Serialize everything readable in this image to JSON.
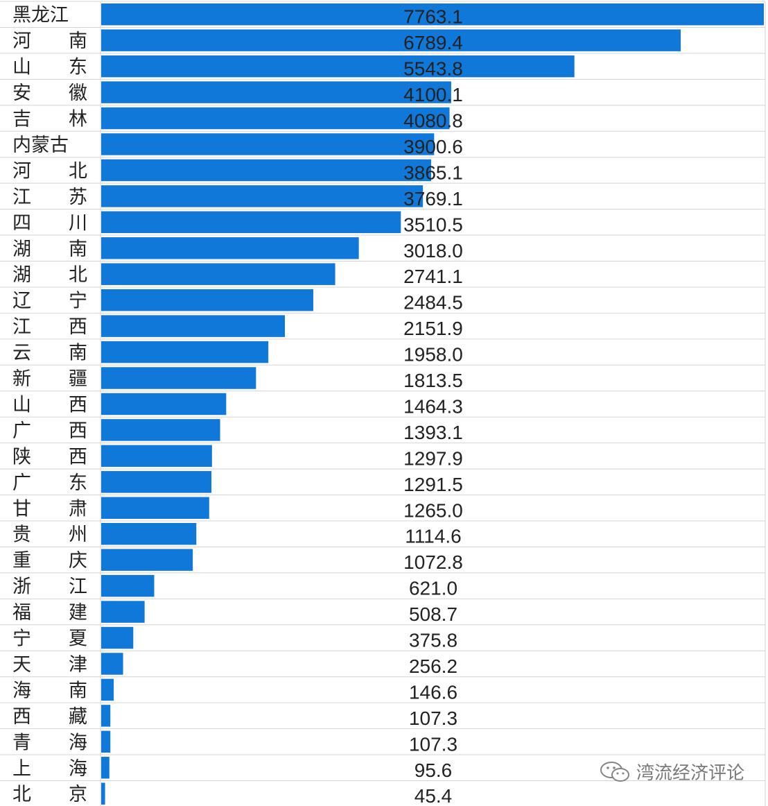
{
  "chart_data": {
    "type": "bar",
    "orientation": "horizontal",
    "categories": [
      "黑龙江",
      "河　　南",
      "山　　东",
      "安　　徽",
      "吉　　林",
      "内蒙古",
      "河　　北",
      "江　　苏",
      "四　　川",
      "湖　　南",
      "湖　　北",
      "辽　　宁",
      "江　　西",
      "云　　南",
      "新　　疆",
      "山　　西",
      "广　　西",
      "陕　　西",
      "广　　东",
      "甘　　肃",
      "贵　　州",
      "重　　庆",
      "浙　　江",
      "福　　建",
      "宁　　夏",
      "天　　津",
      "海　　南",
      "西　　藏",
      "青　　海",
      "上　　海",
      "北　　京"
    ],
    "values": [
      7763.1,
      6789.4,
      5543.8,
      4100.1,
      4080.8,
      3900.6,
      3865.1,
      3769.1,
      3510.5,
      3018.0,
      2741.1,
      2484.5,
      2151.9,
      1958.0,
      1813.5,
      1464.3,
      1393.1,
      1297.9,
      1291.5,
      1265.0,
      1114.6,
      1072.8,
      621.0,
      508.7,
      375.8,
      256.2,
      146.6,
      107.3,
      107.3,
      95.6,
      45.4
    ],
    "value_labels": [
      "7763.1",
      "6789.4",
      "5543.8",
      "4100.1",
      "4080.8",
      "3900.6",
      "3865.1",
      "3769.1",
      "3510.5",
      "3018.0",
      "2741.1",
      "2484.5",
      "2151.9",
      "1958.0",
      "1813.5",
      "1464.3",
      "1393.1",
      "1297.9",
      "1291.5",
      "1265.0",
      "1114.6",
      "1072.8",
      "621.0",
      "508.7",
      "375.8",
      "256.2",
      "146.6",
      "107.3",
      "107.3",
      "95.6",
      "45.4"
    ],
    "xlim": [
      0,
      7763.1
    ],
    "bar_color": "#0f78d8",
    "grid": true,
    "title": "",
    "xlabel": "",
    "ylabel": ""
  },
  "watermark": {
    "text": "湾流经济评论",
    "icon": "wechat-icon"
  }
}
